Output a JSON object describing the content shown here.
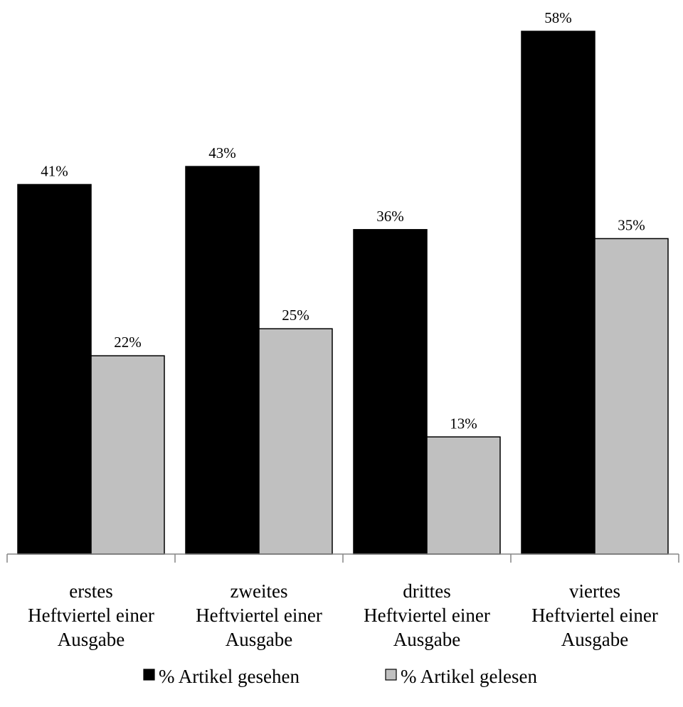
{
  "chart_data": {
    "type": "bar",
    "categories": [
      [
        "erstes",
        "Heftviertel einer",
        "Ausgabe"
      ],
      [
        "zweites",
        "Heftviertel einer",
        "Ausgabe"
      ],
      [
        "drittes",
        "Heftviertel einer",
        "Ausgabe"
      ],
      [
        "viertes",
        "Heftviertel einer",
        "Ausgabe"
      ]
    ],
    "series": [
      {
        "name": "% Artikel gesehen",
        "values": [
          41,
          43,
          36,
          58
        ],
        "labels": [
          "41%",
          "43%",
          "36%",
          "58%"
        ],
        "color": "#000000"
      },
      {
        "name": "% Artikel gelesen",
        "values": [
          22,
          25,
          13,
          35
        ],
        "labels": [
          "22%",
          "25%",
          "13%",
          "35%"
        ],
        "color": "#c0c0c0"
      }
    ],
    "ylim": [
      0,
      58
    ],
    "grid": false,
    "legend_position": "bottom",
    "title": "",
    "xlabel": "",
    "ylabel": ""
  }
}
